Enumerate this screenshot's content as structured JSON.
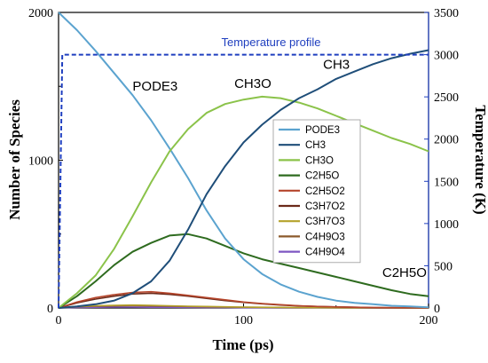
{
  "chart_data": {
    "type": "line",
    "xlabel": "Time (ps)",
    "ylabel": "Number of Species",
    "y2label": "Temperature (K)",
    "xlim": [
      0,
      200
    ],
    "ylim": [
      0,
      2000
    ],
    "y2lim": [
      0,
      3500
    ],
    "xticks": [
      0,
      100,
      200
    ],
    "yticks": [
      0,
      1000,
      2000
    ],
    "y2ticks": [
      0,
      500,
      1000,
      1500,
      2000,
      2500,
      3000,
      3500
    ],
    "legend_position": "center",
    "series": [
      {
        "name": "PODE3",
        "color": "#5ba3cf",
        "x": [
          0,
          10,
          20,
          30,
          40,
          50,
          60,
          70,
          80,
          90,
          100,
          110,
          120,
          130,
          140,
          150,
          160,
          170,
          180,
          190,
          200
        ],
        "y": [
          2000,
          1880,
          1740,
          1590,
          1440,
          1270,
          1080,
          880,
          660,
          470,
          330,
          230,
          160,
          110,
          75,
          50,
          35,
          25,
          15,
          10,
          5
        ]
      },
      {
        "name": "CH3",
        "color": "#1f4e79",
        "x": [
          0,
          10,
          20,
          30,
          40,
          50,
          60,
          70,
          80,
          90,
          100,
          110,
          120,
          130,
          140,
          150,
          160,
          170,
          180,
          190,
          200
        ],
        "y": [
          0,
          10,
          25,
          50,
          100,
          180,
          320,
          530,
          770,
          960,
          1120,
          1240,
          1340,
          1420,
          1480,
          1550,
          1600,
          1650,
          1690,
          1720,
          1745
        ]
      },
      {
        "name": "CH3O",
        "color": "#8bc34a",
        "x": [
          0,
          10,
          20,
          30,
          40,
          50,
          60,
          70,
          80,
          90,
          100,
          110,
          120,
          130,
          140,
          150,
          160,
          170,
          180,
          190,
          200
        ],
        "y": [
          0,
          100,
          220,
          400,
          620,
          850,
          1060,
          1210,
          1320,
          1380,
          1410,
          1430,
          1420,
          1390,
          1350,
          1300,
          1250,
          1200,
          1150,
          1110,
          1060
        ]
      },
      {
        "name": "C2H5O",
        "color": "#2e6b1f",
        "x": [
          0,
          10,
          20,
          30,
          40,
          50,
          60,
          70,
          80,
          90,
          100,
          110,
          120,
          130,
          140,
          150,
          160,
          170,
          180,
          190,
          200
        ],
        "y": [
          0,
          80,
          180,
          290,
          380,
          440,
          490,
          500,
          470,
          420,
          370,
          330,
          300,
          270,
          240,
          210,
          180,
          150,
          120,
          95,
          80
        ]
      },
      {
        "name": "C2H5O2",
        "color": "#b5452b",
        "x": [
          0,
          10,
          20,
          30,
          40,
          50,
          60,
          70,
          80,
          90,
          100,
          110,
          120,
          130,
          140,
          150,
          160,
          170,
          180,
          190,
          200
        ],
        "y": [
          0,
          40,
          70,
          90,
          105,
          110,
          100,
          85,
          70,
          55,
          40,
          30,
          22,
          15,
          10,
          7,
          5,
          3,
          2,
          2,
          1
        ]
      },
      {
        "name": "C3H7O2",
        "color": "#6b2a1a",
        "x": [
          0,
          10,
          20,
          30,
          40,
          50,
          60,
          70,
          80,
          90,
          100,
          110,
          120,
          130,
          140,
          150,
          160,
          170,
          180,
          190,
          200
        ],
        "y": [
          0,
          35,
          60,
          80,
          95,
          100,
          92,
          80,
          65,
          50,
          38,
          28,
          20,
          14,
          10,
          7,
          5,
          3,
          2,
          1,
          1
        ]
      },
      {
        "name": "C3H7O3",
        "color": "#b5a22b",
        "x": [
          0,
          10,
          20,
          30,
          40,
          50,
          60,
          70,
          80,
          90,
          100,
          110,
          120,
          130,
          140,
          150,
          160,
          170,
          180,
          190,
          200
        ],
        "y": [
          0,
          10,
          15,
          18,
          20,
          18,
          15,
          12,
          10,
          8,
          6,
          5,
          4,
          3,
          2,
          2,
          1,
          1,
          1,
          0,
          0
        ]
      },
      {
        "name": "C4H9O3",
        "color": "#8b5a2b",
        "x": [
          0,
          10,
          20,
          30,
          40,
          50,
          60,
          70,
          80,
          90,
          100,
          110,
          120,
          130,
          140,
          150,
          160,
          170,
          180,
          190,
          200
        ],
        "y": [
          0,
          8,
          12,
          14,
          15,
          14,
          12,
          10,
          8,
          6,
          5,
          4,
          3,
          2,
          2,
          1,
          1,
          1,
          0,
          0,
          0
        ]
      },
      {
        "name": "C4H9O4",
        "color": "#7e57c2",
        "x": [
          0,
          10,
          20,
          30,
          40,
          50,
          60,
          70,
          80,
          90,
          100,
          110,
          120,
          130,
          140,
          150,
          160,
          170,
          180,
          190,
          200
        ],
        "y": [
          0,
          3,
          5,
          6,
          6,
          5,
          5,
          4,
          3,
          3,
          2,
          2,
          1,
          1,
          1,
          1,
          0,
          0,
          0,
          0,
          0
        ]
      }
    ],
    "temperature_profile": {
      "name": "Temperature profile",
      "color": "#1f3fbf",
      "style": "dashed",
      "x": [
        0,
        1,
        2,
        3,
        200
      ],
      "y": [
        0,
        1500,
        3000,
        3000,
        3000
      ]
    },
    "annotations": [
      {
        "text": "PODE3",
        "x": 40,
        "y": 1470
      },
      {
        "text": "CH3O",
        "x": 95,
        "y": 1490
      },
      {
        "text": "CH3",
        "x": 143,
        "y": 1620
      },
      {
        "text": "C2H5O",
        "x": 175,
        "y": 210
      },
      {
        "text": "Temperature profile",
        "x": 88,
        "y": 3100
      }
    ]
  }
}
